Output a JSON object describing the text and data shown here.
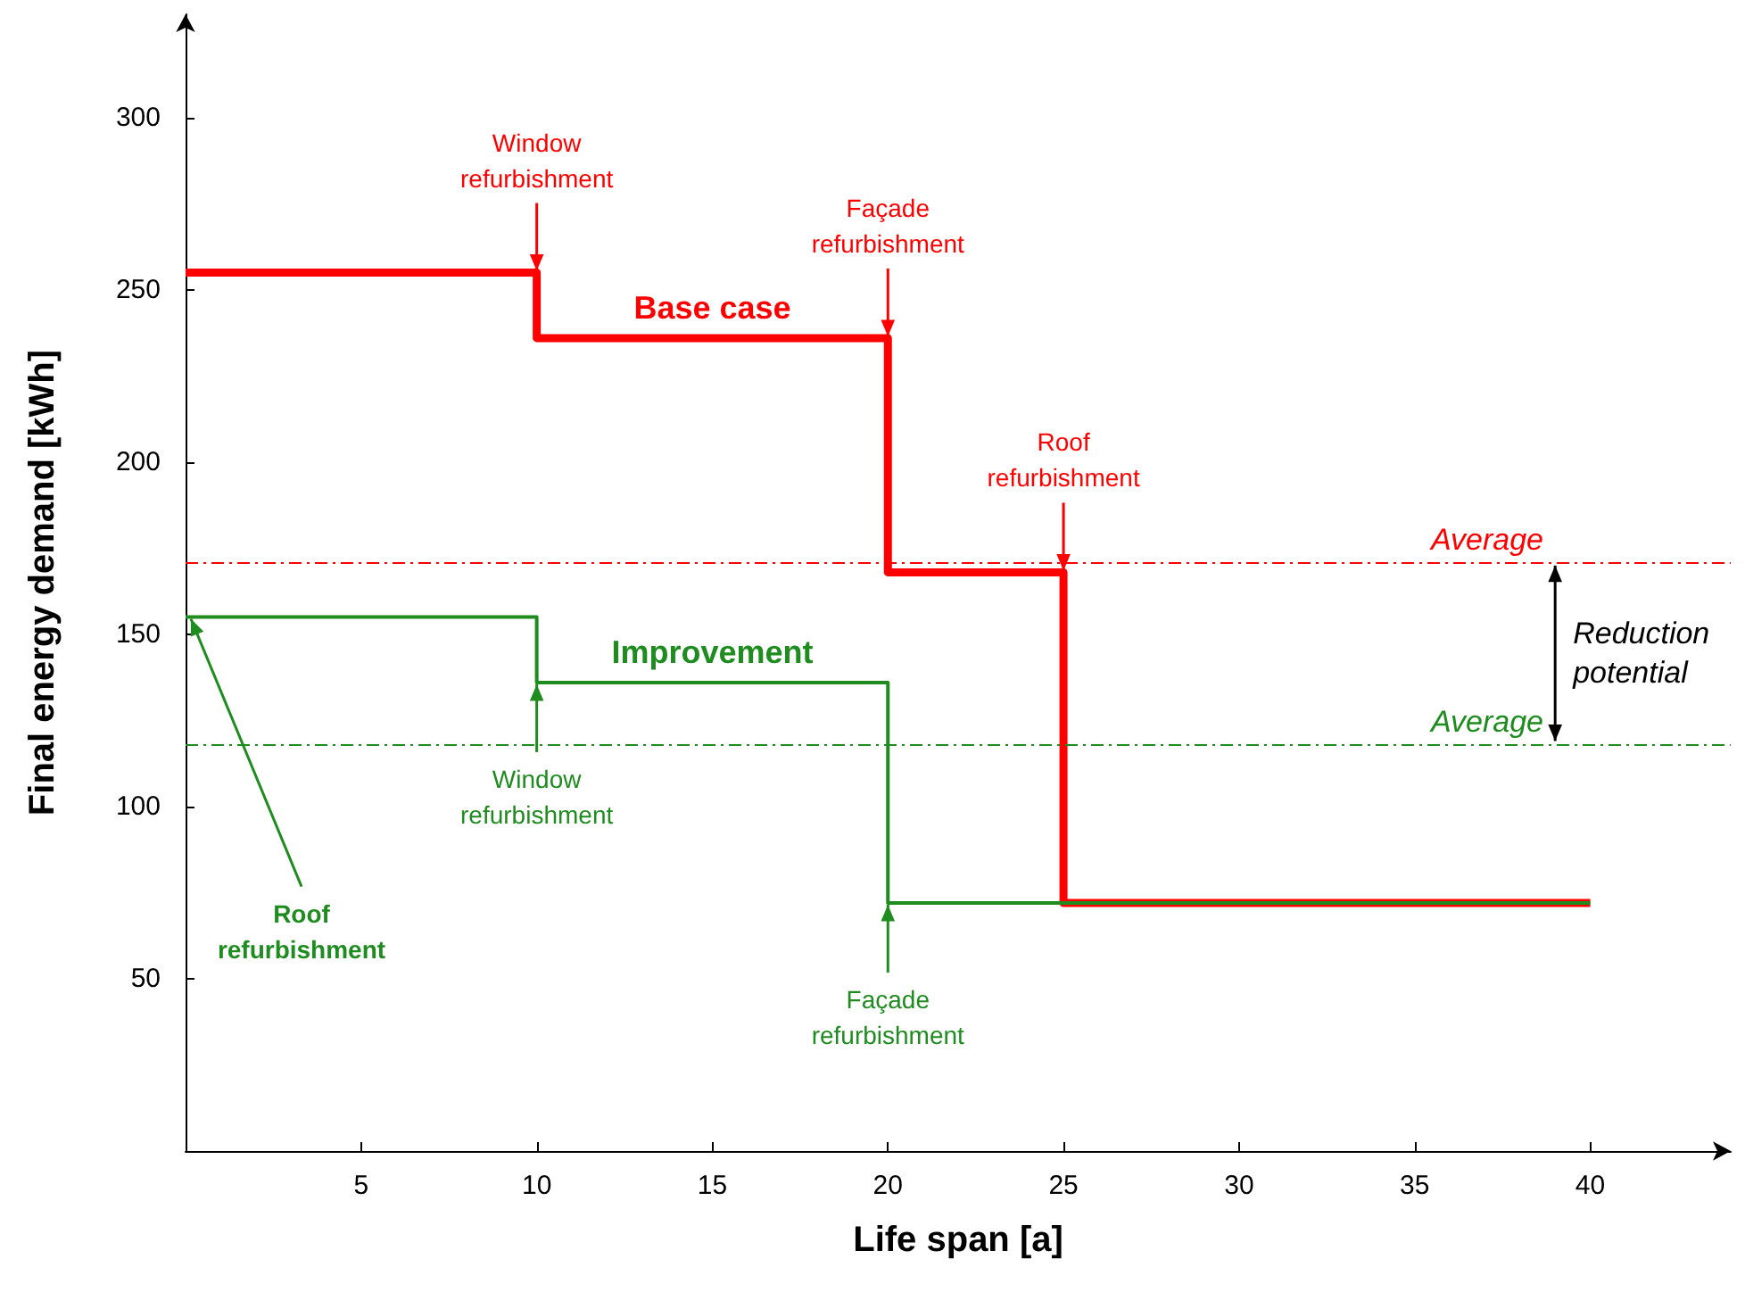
{
  "chart_data": {
    "type": "step",
    "xlabel": "Life span [a]",
    "ylabel": "Final energy demand [kWh]",
    "xlim": [
      0,
      44
    ],
    "xticks": [
      5,
      10,
      15,
      20,
      25,
      30,
      35,
      40
    ],
    "ylim": [
      0,
      330
    ],
    "yticks": [
      50,
      100,
      150,
      200,
      250,
      300
    ],
    "grid": false,
    "legend": false,
    "marker": "none",
    "line_style": "solid",
    "series": [
      {
        "name": "Base case",
        "color": "#ff0000",
        "x": [
          0,
          10,
          20,
          25,
          40
        ],
        "values": [
          255,
          236,
          168,
          72,
          72
        ]
      },
      {
        "name": "Improvement",
        "color": "#1e8c1e",
        "x": [
          0,
          10,
          20,
          40
        ],
        "values": [
          155,
          136,
          72,
          72
        ]
      }
    ],
    "ref_lines": [
      {
        "axis": "y",
        "value": 171,
        "label": "Average",
        "color": "#ff0000",
        "line_style": "dashed"
      },
      {
        "axis": "y",
        "value": 118,
        "label": "Average",
        "color": "#1e8c1e",
        "line_style": "dashed"
      }
    ],
    "annotations": [
      {
        "text": "Window refurbishment",
        "x": 10,
        "y": 255
      },
      {
        "text": "Façade refurbishment",
        "x": 20,
        "y": 236
      },
      {
        "text": "Roof refurbishment",
        "x": 25,
        "y": 168
      },
      {
        "text": "Window refurbishment",
        "x": 10,
        "y": 136
      },
      {
        "text": "Façade refurbishment",
        "x": 20,
        "y": 72
      },
      {
        "text": "Roof refurbishment",
        "x": 0,
        "y": 155
      },
      "Reduction potential"
    ]
  }
}
